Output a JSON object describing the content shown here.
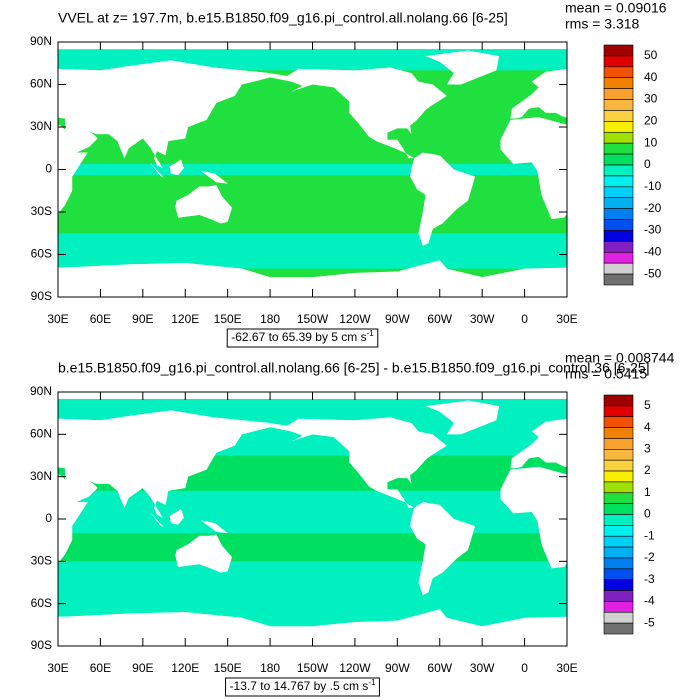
{
  "panels": [
    {
      "title": "VVEL at z= 197.7m, b.e15.B1850.f09_g16.pi_control.all.nolang.66 [6-25]",
      "mean": "mean = 0.09016",
      "rms": "rms = 3.318",
      "lat_ticks": [
        "90N",
        "60N",
        "30N",
        "0",
        "30S",
        "60S",
        "90S"
      ],
      "lon_ticks": [
        "30E",
        "60E",
        "90E",
        "120E",
        "150E",
        "180",
        "150W",
        "120W",
        "90W",
        "60W",
        "30W",
        "0",
        "30E"
      ],
      "colorbar_labels": [
        50,
        40,
        30,
        20,
        10,
        0,
        -10,
        -20,
        -30,
        -40,
        -50
      ],
      "info_text": "-62.67 to 65.39 by 5 cm s",
      "info_superscript": "-1"
    },
    {
      "title": "b.e15.B1850.f09_g16.pi_control.all.nolang.66 [6-25] - b.e15.B1850.f09_g16.pi_control.36 [6-25]",
      "mean": "mean = 0.008744",
      "rms": "rms = 0.5415",
      "lat_ticks": [
        "90N",
        "60N",
        "30N",
        "0",
        "30S",
        "60S",
        "90S"
      ],
      "lon_ticks": [
        "30E",
        "60E",
        "90E",
        "120E",
        "150E",
        "180",
        "150W",
        "120W",
        "90W",
        "60W",
        "30W",
        "0",
        "30E"
      ],
      "colorbar_labels": [
        5,
        4,
        3,
        2,
        1,
        0,
        -1,
        -2,
        -3,
        -4,
        -5
      ],
      "info_text": "-13.7 to 14.767 by .5 cm s",
      "info_superscript": "-1"
    }
  ],
  "colorbar_colors": [
    "#a00000",
    "#e00000",
    "#f05000",
    "#f08000",
    "#f8a030",
    "#f8b840",
    "#f8d040",
    "#f8f000",
    "#a0e000",
    "#20e040",
    "#00e060",
    "#00f0c0",
    "#00f0f0",
    "#00d0f8",
    "#00b0f0",
    "#0080f0",
    "#0050f0",
    "#0000e0",
    "#8020c0",
    "#e020e0",
    "#d0d0d0",
    "#707070"
  ]
}
